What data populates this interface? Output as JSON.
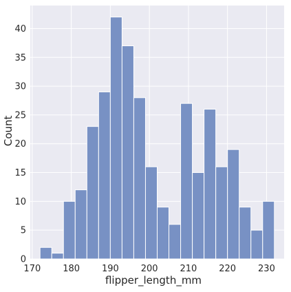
{
  "chart_data": {
    "type": "bar",
    "xlabel": "flipper_length_mm",
    "ylabel": "Count",
    "xlim": [
      169.5,
      234.5
    ],
    "ylim": [
      0,
      44
    ],
    "x_ticks": [
      170,
      180,
      190,
      200,
      210,
      220,
      230
    ],
    "y_ticks": [
      0,
      5,
      10,
      15,
      20,
      25,
      30,
      35,
      40
    ],
    "grid": true,
    "bins": [
      {
        "x0": 172.0,
        "x1": 175.0,
        "count": 2
      },
      {
        "x0": 175.0,
        "x1": 178.0,
        "count": 1
      },
      {
        "x0": 178.0,
        "x1": 181.0,
        "count": 10
      },
      {
        "x0": 181.0,
        "x1": 184.0,
        "count": 12
      },
      {
        "x0": 184.0,
        "x1": 187.0,
        "count": 23
      },
      {
        "x0": 187.0,
        "x1": 190.0,
        "count": 29
      },
      {
        "x0": 190.0,
        "x1": 193.0,
        "count": 42
      },
      {
        "x0": 193.0,
        "x1": 196.0,
        "count": 37
      },
      {
        "x0": 196.0,
        "x1": 199.0,
        "count": 28
      },
      {
        "x0": 199.0,
        "x1": 202.0,
        "count": 16
      },
      {
        "x0": 202.0,
        "x1": 205.0,
        "count": 9
      },
      {
        "x0": 205.0,
        "x1": 208.0,
        "count": 6
      },
      {
        "x0": 208.0,
        "x1": 211.0,
        "count": 27
      },
      {
        "x0": 211.0,
        "x1": 214.0,
        "count": 15
      },
      {
        "x0": 214.0,
        "x1": 217.0,
        "count": 26
      },
      {
        "x0": 217.0,
        "x1": 220.0,
        "count": 16
      },
      {
        "x0": 220.0,
        "x1": 223.0,
        "count": 19
      },
      {
        "x0": 223.0,
        "x1": 226.0,
        "count": 9
      },
      {
        "x0": 226.0,
        "x1": 229.0,
        "count": 5
      },
      {
        "x0": 229.0,
        "x1": 232.0,
        "count": 10
      }
    ],
    "colors": {
      "plot_background": "#eaeaf2",
      "bar_fill": "#7891c4",
      "bar_edge": "#ffffff",
      "grid": "#ffffff",
      "text": "#262626"
    }
  }
}
